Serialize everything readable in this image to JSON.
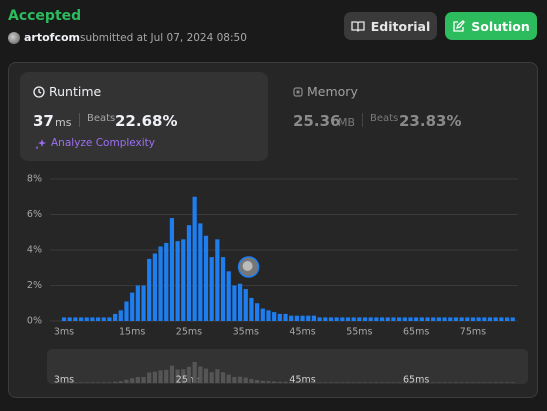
{
  "status": "Accepted",
  "user": "artofcom",
  "submitted": "submitted at Jul 07, 2024 08:50",
  "buttons": {
    "editorial": "Editorial",
    "solution": "Solution"
  },
  "runtime": {
    "label": "Runtime",
    "value": "37",
    "unit": "ms",
    "beats_label": "Beats",
    "beats": "22.68%",
    "analyze": "Analyze Complexity"
  },
  "memory": {
    "label": "Memory",
    "value": "25.36",
    "unit": "MB",
    "beats_label": "Beats",
    "beats": "23.83%"
  },
  "chart_data": {
    "type": "bar",
    "color": "#1e7ef0",
    "grid": true,
    "categories": [
      "3ms",
      null,
      null,
      null,
      null,
      null,
      null,
      null,
      null,
      null,
      null,
      null,
      "15ms",
      null,
      null,
      null,
      null,
      null,
      null,
      null,
      null,
      null,
      "25ms",
      null,
      null,
      null,
      null,
      null,
      null,
      null,
      null,
      null,
      "35ms",
      null,
      null,
      null,
      null,
      null,
      null,
      null,
      null,
      null,
      "45ms",
      null,
      null,
      null,
      null,
      null,
      null,
      null,
      null,
      null,
      "55ms",
      null,
      null,
      null,
      null,
      null,
      null,
      null,
      null,
      null,
      "65ms",
      null,
      null,
      null,
      null,
      null,
      null,
      null,
      null,
      null,
      "75ms",
      null,
      null,
      null,
      null,
      null,
      null,
      null
    ],
    "values": [
      0.2,
      0.2,
      0.2,
      0.2,
      0.2,
      0.2,
      0.2,
      0.2,
      0.2,
      0.4,
      0.6,
      1.1,
      1.6,
      2.0,
      2.0,
      3.5,
      3.8,
      4.2,
      4.4,
      5.8,
      4.5,
      4.6,
      5.4,
      7.0,
      5.5,
      4.8,
      3.6,
      4.6,
      3.6,
      2.8,
      2.0,
      2.1,
      1.8,
      1.3,
      1.0,
      0.7,
      0.6,
      0.5,
      0.4,
      0.4,
      0.3,
      0.3,
      0.3,
      0.3,
      0.3,
      0.2,
      0.2,
      0.2,
      0.2,
      0.2,
      0.2,
      0.2,
      0.2,
      0.2,
      0.2,
      0.2,
      0.2,
      0.2,
      0.2,
      0.2,
      0.2,
      0.2,
      0.2,
      0.2,
      0.2,
      0.2,
      0.2,
      0.2,
      0.2,
      0.2,
      0.2,
      0.2,
      0.2,
      0.2,
      0.2,
      0.2,
      0.2,
      0.2,
      0.2,
      0.2
    ],
    "ylim": [
      0,
      8
    ],
    "yticks": [
      {
        "value": 0,
        "label": "0%"
      },
      {
        "value": 2,
        "label": "2%"
      },
      {
        "value": 4,
        "label": "4%"
      },
      {
        "value": 6,
        "label": "6%"
      },
      {
        "value": 8,
        "label": "8%"
      }
    ]
  }
}
